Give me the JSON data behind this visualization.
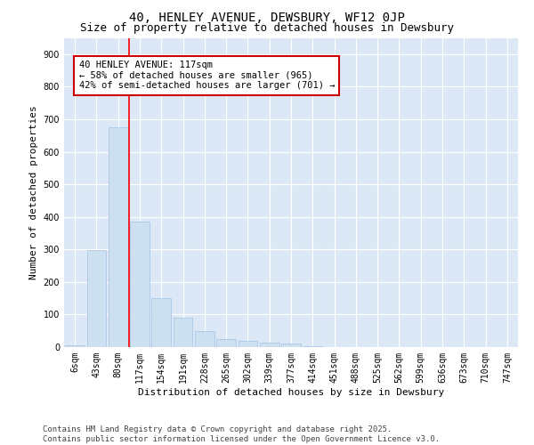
{
  "title": "40, HENLEY AVENUE, DEWSBURY, WF12 0JP",
  "subtitle": "Size of property relative to detached houses in Dewsbury",
  "xlabel": "Distribution of detached houses by size in Dewsbury",
  "ylabel": "Number of detached properties",
  "categories": [
    "6sqm",
    "43sqm",
    "80sqm",
    "117sqm",
    "154sqm",
    "191sqm",
    "228sqm",
    "265sqm",
    "302sqm",
    "339sqm",
    "377sqm",
    "414sqm",
    "451sqm",
    "488sqm",
    "525sqm",
    "562sqm",
    "599sqm",
    "636sqm",
    "673sqm",
    "710sqm",
    "747sqm"
  ],
  "values": [
    5,
    298,
    675,
    385,
    150,
    90,
    50,
    25,
    20,
    15,
    10,
    2,
    1,
    0,
    0,
    0,
    0,
    0,
    0,
    0,
    0
  ],
  "bar_color": "#cce0f0",
  "bar_edge_color": "#aac8e8",
  "red_line_index": 3,
  "annotation_text": "40 HENLEY AVENUE: 117sqm\n← 58% of detached houses are smaller (965)\n42% of semi-detached houses are larger (701) →",
  "annotation_box_color": "#ffffff",
  "annotation_box_edge": "#cc0000",
  "ylim": [
    0,
    950
  ],
  "yticks": [
    0,
    100,
    200,
    300,
    400,
    500,
    600,
    700,
    800,
    900
  ],
  "background_color": "#ffffff",
  "plot_bg_color": "#dce8f5",
  "footer": "Contains HM Land Registry data © Crown copyright and database right 2025.\nContains public sector information licensed under the Open Government Licence v3.0.",
  "title_fontsize": 10,
  "subtitle_fontsize": 9,
  "axis_label_fontsize": 8,
  "tick_fontsize": 7,
  "annotation_fontsize": 7.5,
  "footer_fontsize": 6.5
}
